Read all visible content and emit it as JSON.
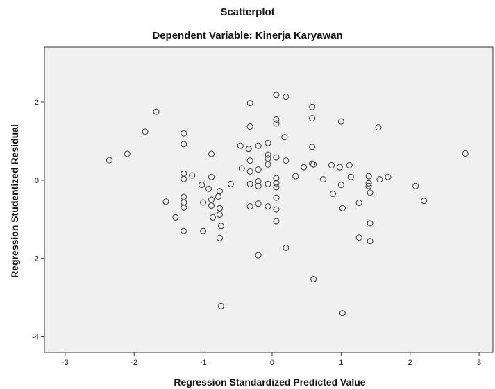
{
  "chart_data": {
    "type": "scatter",
    "title": "Scatterplot",
    "subtitle": "Dependent Variable: Kinerja Karyawan",
    "xlabel": "Regression Standardized Predicted Value",
    "ylabel": "Regression Studentized Residual",
    "xlim": [
      -3.3,
      3.2
    ],
    "ylim": [
      -4.4,
      3.4
    ],
    "xticks": [
      -3,
      -2,
      -1,
      0,
      1,
      2,
      3
    ],
    "yticks": [
      -4,
      -2,
      0,
      2
    ],
    "grid": false,
    "colors": {
      "plot_background": "#f0f0f0",
      "marker_edge": "#333333",
      "page_background": "#ffffff"
    },
    "points": [
      [
        -2.36,
        0.51
      ],
      [
        -2.1,
        0.67
      ],
      [
        -1.84,
        1.24
      ],
      [
        -1.68,
        1.75
      ],
      [
        -1.54,
        -0.55
      ],
      [
        -1.4,
        -0.95
      ],
      [
        -1.28,
        1.2
      ],
      [
        -1.28,
        0.92
      ],
      [
        -1.28,
        0.17
      ],
      [
        -1.28,
        0.03
      ],
      [
        -1.28,
        -0.43
      ],
      [
        -1.28,
        -0.57
      ],
      [
        -1.28,
        -0.7
      ],
      [
        -1.28,
        -1.3
      ],
      [
        -1.16,
        0.12
      ],
      [
        -1.02,
        -0.12
      ],
      [
        -1.0,
        -0.57
      ],
      [
        -1.0,
        -1.3
      ],
      [
        -0.92,
        -0.22
      ],
      [
        -0.88,
        0.67
      ],
      [
        -0.88,
        0.08
      ],
      [
        -0.88,
        -0.5
      ],
      [
        -0.88,
        -0.65
      ],
      [
        -0.86,
        -0.95
      ],
      [
        -0.78,
        -0.42
      ],
      [
        -0.76,
        -0.28
      ],
      [
        -0.76,
        -0.72
      ],
      [
        -0.76,
        -0.88
      ],
      [
        -0.74,
        -1.17
      ],
      [
        -0.76,
        -1.48
      ],
      [
        -0.74,
        -3.22
      ],
      [
        -0.6,
        -0.1
      ],
      [
        -0.46,
        0.88
      ],
      [
        -0.44,
        0.3
      ],
      [
        -0.34,
        0.8
      ],
      [
        -0.32,
        1.97
      ],
      [
        -0.32,
        1.37
      ],
      [
        -0.32,
        0.5
      ],
      [
        -0.32,
        0.22
      ],
      [
        -0.32,
        -0.1
      ],
      [
        -0.32,
        -0.67
      ],
      [
        -0.2,
        0.88
      ],
      [
        -0.2,
        0.27
      ],
      [
        -0.2,
        -0.03
      ],
      [
        -0.2,
        -0.15
      ],
      [
        -0.2,
        -0.6
      ],
      [
        -0.2,
        -1.92
      ],
      [
        -0.06,
        0.95
      ],
      [
        -0.06,
        0.65
      ],
      [
        -0.06,
        0.55
      ],
      [
        -0.06,
        0.4
      ],
      [
        -0.06,
        -0.1
      ],
      [
        -0.06,
        -0.67
      ],
      [
        0.06,
        2.18
      ],
      [
        0.06,
        1.55
      ],
      [
        0.06,
        1.45
      ],
      [
        0.06,
        0.58
      ],
      [
        0.06,
        0.05
      ],
      [
        0.06,
        -0.08
      ],
      [
        0.06,
        -0.18
      ],
      [
        0.06,
        -0.45
      ],
      [
        0.06,
        -0.75
      ],
      [
        0.06,
        -1.05
      ],
      [
        0.18,
        1.1
      ],
      [
        0.2,
        2.13
      ],
      [
        0.2,
        0.5
      ],
      [
        0.2,
        -1.73
      ],
      [
        0.34,
        0.1
      ],
      [
        0.46,
        0.33
      ],
      [
        0.58,
        1.87
      ],
      [
        0.58,
        1.58
      ],
      [
        0.58,
        0.85
      ],
      [
        0.58,
        0.42
      ],
      [
        0.6,
        0.4
      ],
      [
        0.6,
        -2.53
      ],
      [
        0.74,
        0.02
      ],
      [
        0.86,
        0.38
      ],
      [
        0.88,
        -0.35
      ],
      [
        0.98,
        0.33
      ],
      [
        1.0,
        1.5
      ],
      [
        1.0,
        -0.12
      ],
      [
        1.02,
        -0.72
      ],
      [
        1.02,
        -3.4
      ],
      [
        1.12,
        0.38
      ],
      [
        1.14,
        0.08
      ],
      [
        1.26,
        -0.58
      ],
      [
        1.26,
        -1.47
      ],
      [
        1.4,
        0.1
      ],
      [
        1.4,
        -0.08
      ],
      [
        1.4,
        -0.15
      ],
      [
        1.42,
        -0.32
      ],
      [
        1.42,
        -1.1
      ],
      [
        1.42,
        -1.56
      ],
      [
        1.54,
        1.35
      ],
      [
        1.56,
        0.02
      ],
      [
        1.68,
        0.08
      ],
      [
        2.08,
        -0.15
      ],
      [
        2.2,
        -0.53
      ],
      [
        2.8,
        0.68
      ]
    ]
  }
}
